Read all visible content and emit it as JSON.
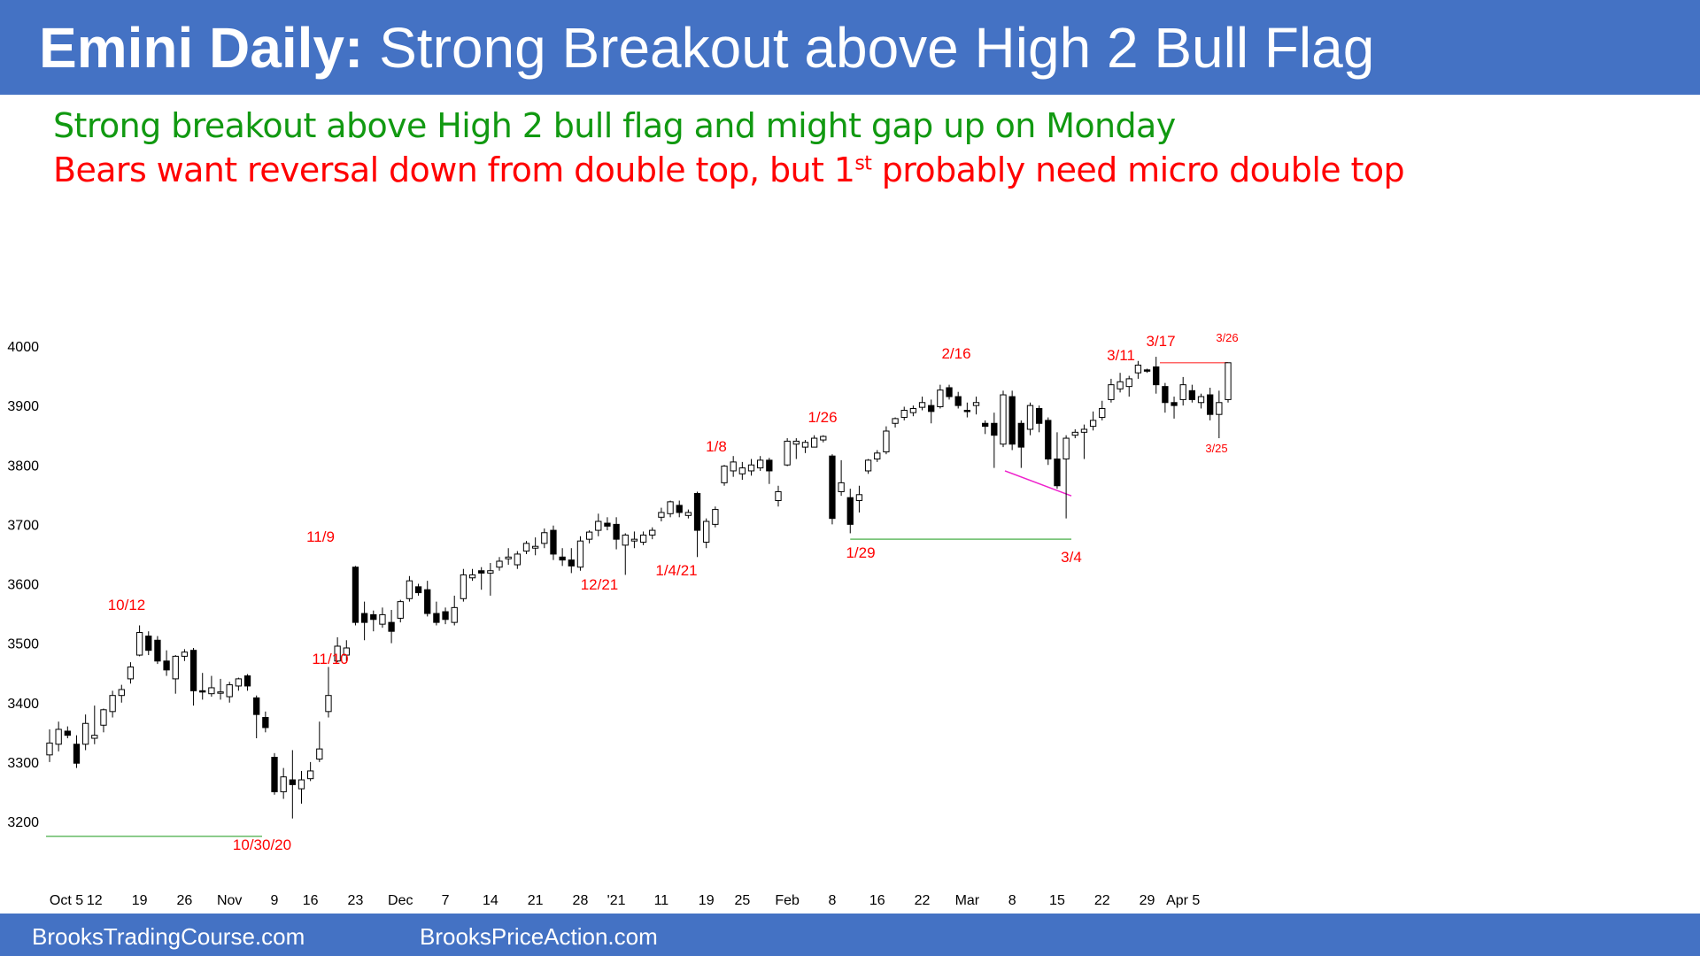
{
  "header": {
    "title_bold": "Emini Daily:",
    "title_rest": "Strong Breakout above High 2 Bull Flag"
  },
  "subtitle_lines": {
    "line1": "Strong breakout above High 2 bull flag and might gap up on Monday",
    "line2_pre": "Bears want reversal down from double top, but 1",
    "line2_sup": "st",
    "line2_post": " probably need micro double top"
  },
  "footer": {
    "left": "BrooksTradingCourse.com",
    "right": "BrooksPriceAction.com"
  },
  "colors": {
    "header_bg": "#4472c4",
    "subtitle_green": "#119911",
    "subtitle_red": "#ff0000",
    "annotation_red": "#ff0000",
    "support_line_green": "#66bb66",
    "wedge_line_magenta": "#ee22cc",
    "resistance_line_red": "#ff6666"
  },
  "chart_data": {
    "type": "candlestick",
    "ylim": [
      3150,
      4050
    ],
    "y_ticks": [
      "4000",
      "3900",
      "3800",
      "3700",
      "3600",
      "3500",
      "3400",
      "3300",
      "3200"
    ],
    "x_ticks": [
      "Oct 5",
      "12",
      "19",
      "26",
      "Nov",
      "9",
      "16",
      "23",
      "Dec",
      "7",
      "14",
      "21",
      "28",
      "'21",
      "11",
      "19",
      "25",
      "Feb",
      "8",
      "16",
      "22",
      "Mar",
      "8",
      "15",
      "22",
      "29",
      "Apr 5"
    ],
    "candles": [
      [
        3312,
        3355,
        3300,
        3332
      ],
      [
        3330,
        3368,
        3318,
        3355
      ],
      [
        3352,
        3360,
        3340,
        3345
      ],
      [
        3330,
        3345,
        3290,
        3298
      ],
      [
        3330,
        3380,
        3320,
        3365
      ],
      [
        3340,
        3395,
        3330,
        3345
      ],
      [
        3362,
        3390,
        3350,
        3388
      ],
      [
        3385,
        3420,
        3375,
        3412
      ],
      [
        3412,
        3430,
        3400,
        3422
      ],
      [
        3440,
        3468,
        3432,
        3460
      ],
      [
        3480,
        3530,
        3478,
        3518
      ],
      [
        3512,
        3520,
        3480,
        3488
      ],
      [
        3505,
        3512,
        3465,
        3470
      ],
      [
        3470,
        3488,
        3445,
        3455
      ],
      [
        3440,
        3480,
        3415,
        3478
      ],
      [
        3478,
        3490,
        3470,
        3485
      ],
      [
        3488,
        3492,
        3395,
        3420
      ],
      [
        3420,
        3450,
        3405,
        3418
      ],
      [
        3415,
        3445,
        3410,
        3425
      ],
      [
        3418,
        3440,
        3405,
        3418
      ],
      [
        3410,
        3435,
        3400,
        3430
      ],
      [
        3428,
        3442,
        3420,
        3440
      ],
      [
        3445,
        3448,
        3420,
        3428
      ],
      [
        3408,
        3412,
        3340,
        3380
      ],
      [
        3375,
        3385,
        3350,
        3358
      ],
      [
        3308,
        3315,
        3245,
        3250
      ],
      [
        3250,
        3290,
        3238,
        3275
      ],
      [
        3270,
        3320,
        3205,
        3262
      ],
      [
        3255,
        3285,
        3230,
        3270
      ],
      [
        3272,
        3300,
        3268,
        3285
      ],
      [
        3305,
        3368,
        3300,
        3322
      ],
      [
        3385,
        3460,
        3375,
        3412
      ],
      [
        3470,
        3510,
        3468,
        3495
      ],
      [
        3480,
        3505,
        3470,
        3492
      ],
      [
        3628,
        3630,
        3530,
        3535
      ],
      [
        3550,
        3570,
        3505,
        3535
      ],
      [
        3548,
        3555,
        3520,
        3540
      ],
      [
        3532,
        3560,
        3526,
        3548
      ],
      [
        3535,
        3556,
        3500,
        3520
      ],
      [
        3542,
        3573,
        3535,
        3570
      ],
      [
        3575,
        3613,
        3570,
        3605
      ],
      [
        3595,
        3600,
        3580,
        3585
      ],
      [
        3590,
        3605,
        3545,
        3550
      ],
      [
        3550,
        3570,
        3530,
        3535
      ],
      [
        3553,
        3560,
        3532,
        3540
      ],
      [
        3535,
        3580,
        3530,
        3560
      ],
      [
        3575,
        3625,
        3570,
        3615
      ],
      [
        3610,
        3625,
        3605,
        3615
      ],
      [
        3622,
        3628,
        3590,
        3618
      ],
      [
        3618,
        3635,
        3580,
        3622
      ],
      [
        3628,
        3645,
        3622,
        3638
      ],
      [
        3642,
        3660,
        3632,
        3645
      ],
      [
        3632,
        3655,
        3625,
        3650
      ],
      [
        3655,
        3672,
        3650,
        3668
      ],
      [
        3660,
        3678,
        3648,
        3663
      ],
      [
        3668,
        3693,
        3660,
        3686
      ],
      [
        3690,
        3698,
        3640,
        3650
      ],
      [
        3645,
        3660,
        3630,
        3640
      ],
      [
        3640,
        3660,
        3618,
        3630
      ],
      [
        3628,
        3680,
        3622,
        3672
      ],
      [
        3675,
        3690,
        3668,
        3687
      ],
      [
        3690,
        3718,
        3680,
        3705
      ],
      [
        3702,
        3712,
        3690,
        3697
      ],
      [
        3700,
        3712,
        3658,
        3675
      ],
      [
        3665,
        3685,
        3615,
        3682
      ],
      [
        3672,
        3688,
        3660,
        3675
      ],
      [
        3670,
        3688,
        3665,
        3682
      ],
      [
        3682,
        3695,
        3675,
        3690
      ],
      [
        3712,
        3728,
        3705,
        3720
      ],
      [
        3718,
        3740,
        3712,
        3738
      ],
      [
        3732,
        3740,
        3712,
        3720
      ],
      [
        3715,
        3725,
        3710,
        3720
      ],
      [
        3752,
        3755,
        3645,
        3690
      ],
      [
        3670,
        3710,
        3660,
        3705
      ],
      [
        3700,
        3730,
        3695,
        3725
      ],
      [
        3770,
        3800,
        3765,
        3798
      ],
      [
        3790,
        3815,
        3780,
        3805
      ],
      [
        3785,
        3805,
        3775,
        3795
      ],
      [
        3790,
        3810,
        3782,
        3800
      ],
      [
        3795,
        3815,
        3790,
        3808
      ],
      [
        3808,
        3812,
        3768,
        3790
      ],
      [
        3740,
        3765,
        3730,
        3755
      ],
      [
        3800,
        3845,
        3798,
        3840
      ],
      [
        3835,
        3845,
        3810,
        3840
      ],
      [
        3830,
        3842,
        3820,
        3838
      ],
      [
        3830,
        3850,
        3830,
        3845
      ],
      [
        3842,
        3850,
        3838,
        3848
      ],
      [
        3815,
        3818,
        3700,
        3710
      ],
      [
        3755,
        3808,
        3748,
        3770
      ],
      [
        3745,
        3760,
        3685,
        3700
      ],
      [
        3740,
        3765,
        3720,
        3750
      ],
      [
        3790,
        3810,
        3785,
        3808
      ],
      [
        3810,
        3825,
        3805,
        3820
      ],
      [
        3822,
        3865,
        3818,
        3857
      ],
      [
        3870,
        3880,
        3863,
        3878
      ],
      [
        3880,
        3898,
        3875,
        3892
      ],
      [
        3888,
        3900,
        3882,
        3895
      ],
      [
        3897,
        3915,
        3892,
        3905
      ],
      [
        3900,
        3910,
        3870,
        3890
      ],
      [
        3898,
        3935,
        3895,
        3926
      ],
      [
        3930,
        3935,
        3910,
        3915
      ],
      [
        3915,
        3923,
        3895,
        3900
      ],
      [
        3892,
        3905,
        3880,
        3890
      ],
      [
        3900,
        3915,
        3885,
        3905
      ],
      [
        3870,
        3875,
        3852,
        3865
      ],
      [
        3870,
        3888,
        3795,
        3850
      ],
      [
        3835,
        3925,
        3830,
        3918
      ],
      [
        3915,
        3925,
        3825,
        3835
      ],
      [
        3870,
        3875,
        3795,
        3830
      ],
      [
        3860,
        3905,
        3850,
        3900
      ],
      [
        3895,
        3900,
        3855,
        3870
      ],
      [
        3875,
        3880,
        3800,
        3810
      ],
      [
        3810,
        3855,
        3760,
        3765
      ],
      [
        3810,
        3850,
        3710,
        3845
      ],
      [
        3850,
        3860,
        3845,
        3855
      ],
      [
        3855,
        3868,
        3810,
        3860
      ],
      [
        3865,
        3890,
        3858,
        3875
      ],
      [
        3880,
        3908,
        3875,
        3895
      ],
      [
        3910,
        3945,
        3905,
        3935
      ],
      [
        3928,
        3955,
        3922,
        3940
      ],
      [
        3932,
        3950,
        3915,
        3945
      ],
      [
        3955,
        3975,
        3945,
        3968
      ],
      [
        3960,
        3962,
        3955,
        3958
      ],
      [
        3965,
        3982,
        3920,
        3935
      ],
      [
        3932,
        3938,
        3888,
        3905
      ],
      [
        3905,
        3915,
        3878,
        3900
      ],
      [
        3910,
        3948,
        3900,
        3935
      ],
      [
        3925,
        3935,
        3905,
        3910
      ],
      [
        3905,
        3920,
        3895,
        3915
      ],
      [
        3918,
        3930,
        3875,
        3885
      ],
      [
        3885,
        3925,
        3845,
        3905
      ],
      [
        3910,
        3972,
        3905,
        3972
      ]
    ],
    "annotations": [
      "10/12",
      "11/9",
      "11/10",
      "10/30/20",
      "12/21",
      "1/4/21",
      "1/8",
      "1/26",
      "1/29",
      "2/16",
      "3/4",
      "3/11",
      "3/17",
      "3/26",
      "3/25"
    ]
  }
}
